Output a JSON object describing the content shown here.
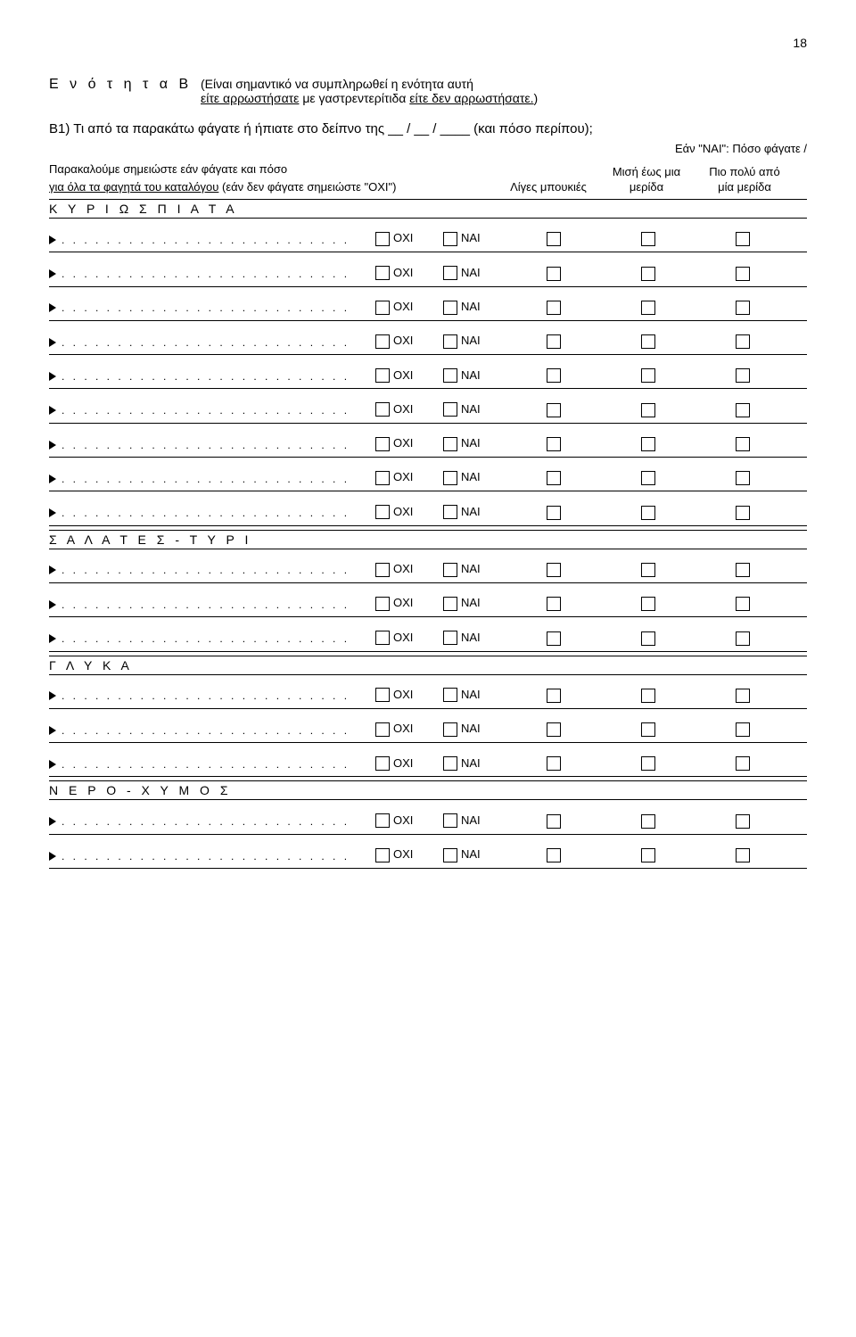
{
  "page_number": "18",
  "section_letter": "Ε ν ό τ η τ α   Β",
  "note_prefix": "(Είναι σημαντικό να συμπληρωθεί η ενότητα αυτή",
  "note_line2_a": "είτε αρρωστήσατε",
  "note_line2_b": " με γαστρεντερίτιδα ",
  "note_line2_c": "είτε δεν αρρωστήσατε.",
  "note_line2_d": ")",
  "q1": "Β1) Τι από τα παρακάτω φάγατε ή ήπιατε στο δείπνο της __ / __ / ____  (και πόσο περίπου);",
  "sub_note": "Εάν \"ΝΑΙ\": Πόσο φάγατε /",
  "instr1": "Παρακαλούμε σημειώστε εάν φάγατε και πόσο",
  "instr2a": "για όλα τα φαγητά του καταλόγου",
  "instr2b": " (εάν δεν φάγατε σημειώστε \"ΟΧΙ\")",
  "col1": "Λίγες μπουκιές",
  "col1_b": "",
  "col2": "Μισή έως μια μερίδα",
  "col3": "Πιο πολύ από μία μερίδα",
  "oxi": "ΟΧΙ",
  "nai": "ΝΑΙ",
  "cat1": "Κ Υ Ρ Ι Ω Σ   Π Ι Α Τ Α",
  "cat2": "Σ Α Λ Α Τ Ε Σ   -   Τ Υ Ρ Ι",
  "cat3": "Γ Λ Υ Κ Α",
  "cat4": "Ν Ε Ρ Ο   -   Χ Υ Μ Ο Σ",
  "dots": ". . . . . . . . . . . . . . . . . . . . . . . . . . . . . . . . . . . . . . . . . . . . . . . ."
}
